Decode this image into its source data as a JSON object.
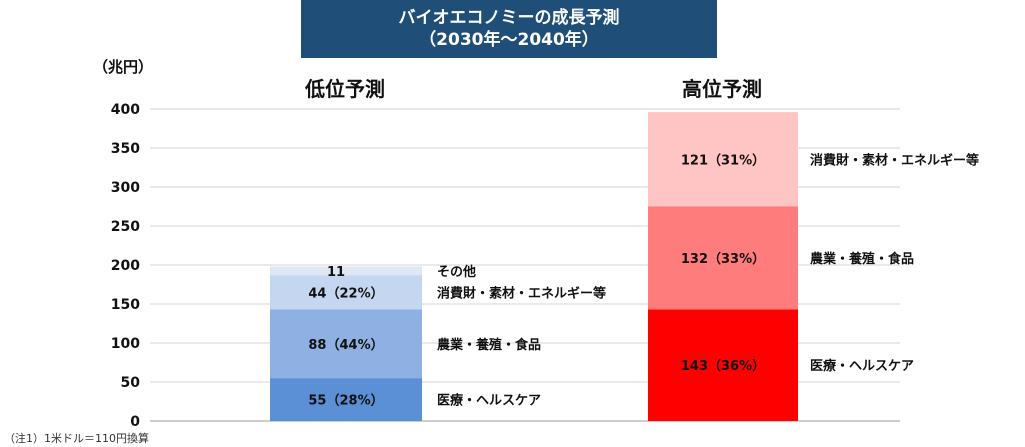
{
  "title": {
    "line1": "バイオエコノミーの成長予測",
    "line2": "（2030年～2040年）",
    "background": "#1f4e79"
  },
  "footnote": "（注1）1米ドル＝110円換算",
  "chart_data": {
    "type": "bar",
    "stacked": true,
    "ylabel": "（兆円）",
    "ylim": [
      0,
      400
    ],
    "yticks": [
      0,
      50,
      100,
      150,
      200,
      250,
      300,
      350,
      400
    ],
    "grid": true,
    "categories": [
      "低位予測",
      "高位予測"
    ],
    "series": [
      {
        "name": "医療・ヘルスケア",
        "values": [
          55,
          143
        ],
        "labels": [
          "55（28%）",
          "143（36%）"
        ],
        "colors": [
          "#5b8fd6",
          "#ff0000"
        ]
      },
      {
        "name": "農業・養殖・食品",
        "values": [
          88,
          132
        ],
        "labels": [
          "88（44%）",
          "132（33%）"
        ],
        "colors": [
          "#8fb0e3",
          "#ff7c7c"
        ]
      },
      {
        "name": "消費財・素材・エネルギー等",
        "values": [
          44,
          121
        ],
        "labels": [
          "44（22%）",
          "121（31%）"
        ],
        "colors": [
          "#c5d6f0",
          "#ffc5c5"
        ]
      },
      {
        "name": "その他",
        "values": [
          11,
          0
        ],
        "labels": [
          "11",
          ""
        ],
        "colors": [
          "#dfe7f5",
          "#ffe0e0"
        ]
      }
    ]
  }
}
